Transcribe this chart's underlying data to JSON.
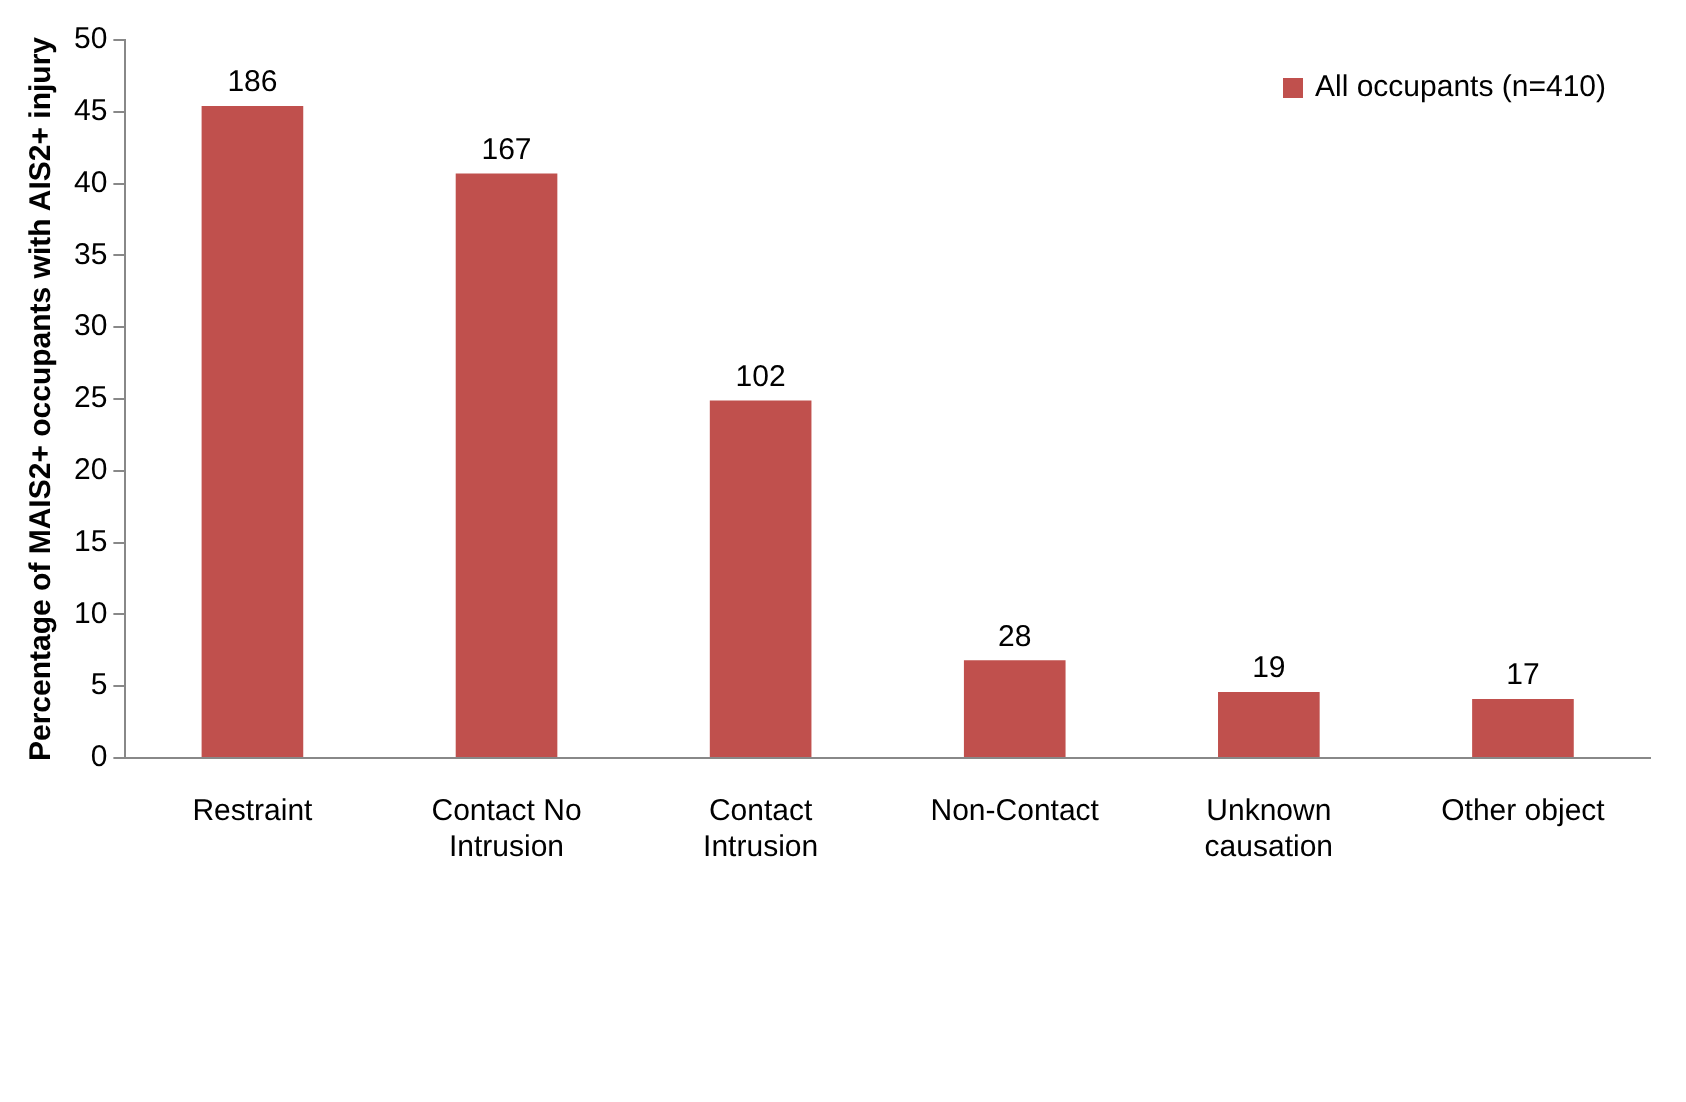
{
  "chart_data": {
    "type": "bar",
    "ylabel": "Percentage of MAIS2+ occupants with AIS2+ injury",
    "categories": [
      "Restraint",
      "Contact No Intrusion",
      "Contact Intrusion",
      "Non-Contact",
      "Unknown causation",
      "Other object"
    ],
    "series": [
      {
        "name": "All occupants (n=410)",
        "color": "#c0504d",
        "values": [
          45.4,
          40.7,
          24.9,
          6.8,
          4.6,
          4.1
        ]
      }
    ],
    "annotations": [
      {
        "text": "186",
        "x": "Restraint",
        "y": 45.4
      },
      {
        "text": "167",
        "x": "Contact No Intrusion",
        "y": 40.7
      },
      {
        "text": "102",
        "x": "Contact Intrusion",
        "y": 24.9
      },
      {
        "text": "28",
        "x": "Non-Contact",
        "y": 6.8
      },
      {
        "text": "19",
        "x": "Unknown causation",
        "y": 4.6
      },
      {
        "text": "17",
        "x": "Other object",
        "y": 4.1
      }
    ],
    "ylim": [
      0,
      50
    ],
    "yticks": [
      0,
      5,
      10,
      15,
      20,
      25,
      30,
      35,
      40,
      45,
      50
    ],
    "grid": false,
    "legend": "top right"
  }
}
